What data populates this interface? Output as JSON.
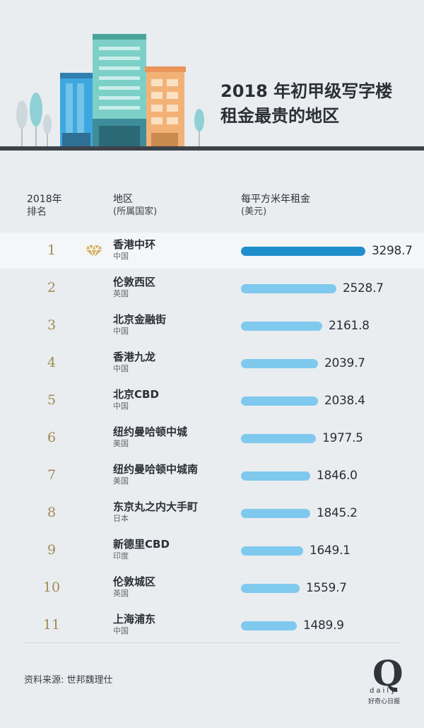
{
  "header": {
    "title": "2018 年初甲级写字楼\n租金最贵的地区"
  },
  "columns": {
    "rank_line1": "2018年",
    "rank_line2": "排名",
    "area_line1": "地区",
    "area_line2": "(所属国家)",
    "rent_line1": "每平方米年租金",
    "rent_line2": "(美元)"
  },
  "colors": {
    "top_bar": "#1f8fcb",
    "bar": "#7fc9ee",
    "rank": "#a08a55",
    "gem": "#d4b36a"
  },
  "chart_data": {
    "type": "bar",
    "orientation": "horizontal",
    "categories": [
      "香港中环",
      "伦敦西区",
      "北京金融街",
      "香港九龙",
      "北京CBD",
      "纽约曼哈顿中城",
      "纽约曼哈顿中城南",
      "东京丸之内大手町",
      "新德里CBD",
      "伦敦城区",
      "上海浦东"
    ],
    "countries": [
      "中国",
      "英国",
      "中国",
      "中国",
      "中国",
      "美国",
      "美国",
      "日本",
      "印度",
      "英国",
      "中国"
    ],
    "ranks": [
      "1",
      "2",
      "3",
      "4",
      "5",
      "6",
      "7",
      "8",
      "9",
      "10",
      "11"
    ],
    "values": [
      3298.7,
      2528.7,
      2161.8,
      2039.7,
      2038.4,
      1977.5,
      1846.0,
      1845.2,
      1649.1,
      1559.7,
      1489.9
    ],
    "value_labels": [
      "3298.7",
      "2528.7",
      "2161.8",
      "2039.7",
      "2038.4",
      "1977.5",
      "1846.0",
      "1845.2",
      "1649.1",
      "1559.7",
      "1489.9"
    ],
    "xlabel": "每平方米年租金(美元)",
    "title": "2018 年初甲级写字楼租金最贵的地区"
  },
  "footer": {
    "source": "资料来源: 世邦魏理仕",
    "logo_letter": "Q",
    "logo_word": "daily",
    "logo_cn": "好奇心日报"
  },
  "icons": {
    "top_rank": "diamond-icon"
  }
}
